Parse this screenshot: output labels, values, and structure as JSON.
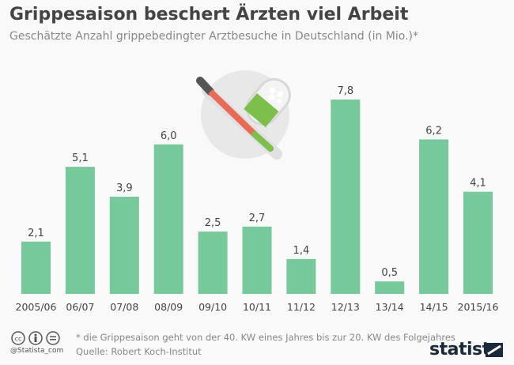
{
  "title": "Grippesaison beschert Ärzten viel Arbeit",
  "subtitle": "Geschätzte Anzahl grippebedingter Arztbesuche in Deutschland (in Mio.)*",
  "footer": {
    "note": "* die Grippesaison geht von der 40. KW eines Jahres bis zur 20. KW des Folgejahres",
    "source": "Quelle: Robert Koch-Institut",
    "handle": "@Statista_com",
    "logo": "statista"
  },
  "colors": {
    "bar": "#76c99b",
    "title": "#444444"
  },
  "chart_data": {
    "type": "bar",
    "title": "Grippesaison beschert Ärzten viel Arbeit",
    "categories": [
      "2005/06",
      "06/07",
      "07/08",
      "08/09",
      "09/10",
      "10/11",
      "11/12",
      "12/13",
      "13/14",
      "14/15",
      "2015/16"
    ],
    "values": [
      2.1,
      5.1,
      3.9,
      6.0,
      2.5,
      2.7,
      1.4,
      7.8,
      0.5,
      6.2,
      4.1
    ],
    "data_labels": [
      "2,1",
      "5,1",
      "3,9",
      "6,0",
      "2,5",
      "2,7",
      "1,4",
      "7,8",
      "0,5",
      "6,2",
      "4,1"
    ],
    "ylim": [
      0,
      8
    ],
    "grid": false
  }
}
